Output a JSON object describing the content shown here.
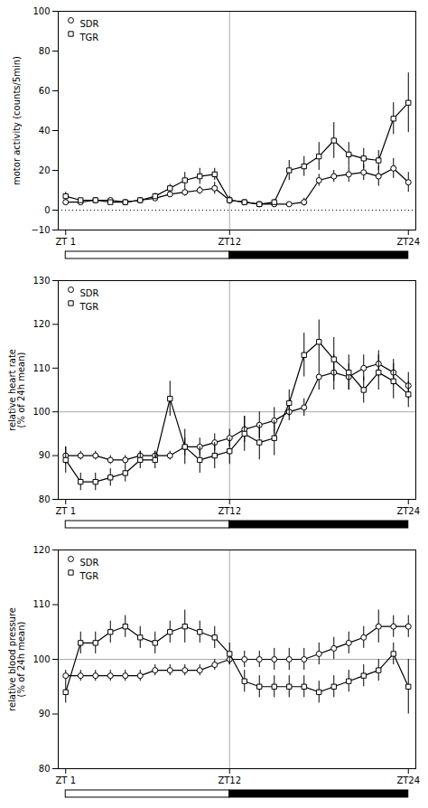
{
  "chart_data": [
    {
      "type": "line",
      "ylabel": "motor activity (counts/5min)",
      "x": [
        1,
        2,
        3,
        4,
        5,
        6,
        7,
        8,
        9,
        10,
        11,
        12,
        13,
        14,
        15,
        16,
        17,
        18,
        19,
        20,
        21,
        22,
        23,
        24
      ],
      "xlim": [
        0.5,
        24.5
      ],
      "xticks": [
        {
          "value": 1,
          "label": "ZT 1"
        },
        {
          "value": 12,
          "label": "ZT12"
        },
        {
          "value": 24,
          "label": "ZT24"
        }
      ],
      "ylim": [
        -10,
        100
      ],
      "yticks": [
        -10,
        0,
        20,
        40,
        60,
        80,
        100
      ],
      "grid": false,
      "legend": "upper left",
      "vline_x": 12,
      "hlines": [
        {
          "y": 0,
          "color": "black",
          "line_style": "dotted"
        }
      ],
      "light_period": [
        1,
        12
      ],
      "dark_period": [
        12,
        24
      ],
      "series": [
        {
          "name": "SDR",
          "color": "black",
          "marker": "circle",
          "values": [
            4,
            4,
            5,
            5,
            4,
            5,
            6,
            8,
            9,
            10,
            11,
            5,
            4,
            3,
            3,
            3,
            4,
            15,
            17,
            18,
            19,
            17,
            21,
            14
          ],
          "errors": [
            1,
            1,
            1,
            1,
            1,
            1,
            1,
            1.5,
            2,
            2,
            3,
            1.5,
            1,
            1,
            1,
            1,
            2,
            3,
            3,
            4,
            4,
            5,
            5,
            5
          ]
        },
        {
          "name": "TGR",
          "color": "black",
          "marker": "square",
          "values": [
            7,
            5,
            5,
            4,
            4,
            5,
            7,
            11,
            15,
            17,
            18,
            5,
            4,
            3,
            4,
            20,
            22,
            27,
            35,
            28,
            26,
            25,
            46,
            54
          ],
          "errors": [
            2,
            1,
            1,
            1,
            1,
            1,
            1.5,
            2,
            4,
            4,
            3,
            2,
            1,
            1,
            1.5,
            5,
            5,
            7,
            9,
            6,
            5,
            5,
            8,
            15
          ]
        }
      ]
    },
    {
      "type": "line",
      "ylabel": "relative heart rate\n(% of 24h mean)",
      "x": [
        1,
        2,
        3,
        4,
        5,
        6,
        7,
        8,
        9,
        10,
        11,
        12,
        13,
        14,
        15,
        16,
        17,
        18,
        19,
        20,
        21,
        22,
        23,
        24
      ],
      "xlim": [
        0.5,
        24.5
      ],
      "xticks": [
        {
          "value": 1,
          "label": "ZT 1"
        },
        {
          "value": 12,
          "label": "ZT12"
        },
        {
          "value": 24,
          "label": "ZT24"
        }
      ],
      "ylim": [
        80,
        130
      ],
      "yticks": [
        80,
        90,
        100,
        110,
        120,
        130
      ],
      "grid": false,
      "legend": "upper left",
      "vline_x": 12,
      "hlines": [
        {
          "y": 100,
          "color": "#aaaaaa",
          "line_style": "solid"
        }
      ],
      "light_period": [
        1,
        12
      ],
      "dark_period": [
        12,
        24
      ],
      "series": [
        {
          "name": "SDR",
          "color": "black",
          "marker": "circle",
          "values": [
            90,
            90,
            90,
            89,
            89,
            90,
            90,
            90,
            92,
            92,
            93,
            94,
            96,
            97,
            98,
            100,
            101,
            108,
            109,
            108,
            110,
            111,
            109,
            106
          ],
          "errors": [
            2,
            1,
            1,
            1,
            1,
            1,
            1,
            1,
            2,
            2,
            2,
            2,
            3,
            3,
            3,
            2,
            2,
            3,
            4,
            3,
            3,
            3,
            3,
            3
          ]
        },
        {
          "name": "TGR",
          "color": "black",
          "marker": "square",
          "values": [
            89,
            84,
            84,
            85,
            86,
            89,
            89,
            103,
            92,
            89,
            90,
            91,
            95,
            93,
            94,
            102,
            113,
            116,
            112,
            109,
            105,
            109,
            107,
            104
          ],
          "errors": [
            3,
            2,
            2,
            2,
            2,
            2,
            2,
            4,
            4,
            3,
            3,
            3,
            4,
            4,
            4,
            3,
            5,
            5,
            5,
            4,
            3,
            4,
            4,
            3
          ]
        }
      ]
    },
    {
      "type": "line",
      "ylabel": "relative blood pressure\n(% of 24h mean)",
      "x": [
        1,
        2,
        3,
        4,
        5,
        6,
        7,
        8,
        9,
        10,
        11,
        12,
        13,
        14,
        15,
        16,
        17,
        18,
        19,
        20,
        21,
        22,
        23,
        24
      ],
      "xlim": [
        0.5,
        24.5
      ],
      "xticks": [
        {
          "value": 1,
          "label": "ZT 1"
        },
        {
          "value": 12,
          "label": "ZT12"
        },
        {
          "value": 24,
          "label": "ZT24"
        }
      ],
      "ylim": [
        80,
        120
      ],
      "yticks": [
        80,
        90,
        100,
        110,
        120
      ],
      "grid": false,
      "legend": "upper left",
      "vline_x": 12,
      "hlines": [
        {
          "y": 100,
          "color": "#aaaaaa",
          "line_style": "solid"
        }
      ],
      "light_period": [
        1,
        12
      ],
      "dark_period": [
        12,
        24
      ],
      "series": [
        {
          "name": "SDR",
          "color": "black",
          "marker": "circle",
          "values": [
            97,
            97,
            97,
            97,
            97,
            97,
            98,
            98,
            98,
            98,
            99,
            100,
            100,
            100,
            100,
            100,
            100,
            101,
            102,
            103,
            104,
            106,
            106,
            106
          ],
          "errors": [
            1,
            1,
            1,
            1,
            1,
            1,
            1,
            1,
            1,
            1,
            1,
            1,
            1.5,
            1.5,
            2,
            2,
            2,
            2,
            2,
            2,
            2,
            3,
            2,
            2
          ]
        },
        {
          "name": "TGR",
          "color": "black",
          "marker": "square",
          "values": [
            94,
            103,
            103,
            105,
            106,
            104,
            103,
            105,
            106,
            105,
            104,
            101,
            96,
            95,
            95,
            95,
            95,
            94,
            95,
            96,
            97,
            98,
            101,
            95
          ],
          "errors": [
            2,
            2,
            2,
            2,
            2,
            2,
            2,
            2,
            3,
            2,
            2,
            2,
            2,
            2,
            2,
            2,
            2,
            2,
            2,
            2,
            2,
            2,
            2,
            5
          ]
        }
      ]
    }
  ]
}
